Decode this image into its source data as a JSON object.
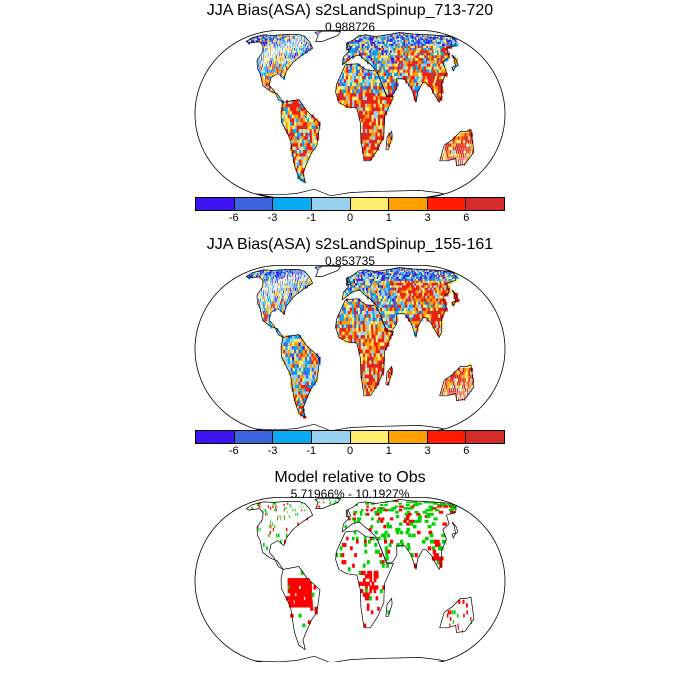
{
  "panels": [
    {
      "title": "JJA Bias(ASA) s2sLandSpinup_713-720",
      "subtitle": "0.988726"
    },
    {
      "title": "JJA Bias(ASA) s2sLandSpinup_155-161",
      "subtitle": "0.853735"
    },
    {
      "title": "Model relative to Obs",
      "subtitle": "5.71966% - 10.1927%"
    }
  ],
  "colorbar": {
    "colors": [
      "#3b14f0",
      "#3c64dc",
      "#0aaaf5",
      "#96d2f0",
      "#ffee6e",
      "#ffa000",
      "#ff1a00",
      "#d42a2a"
    ],
    "tick_labels": [
      "-6",
      "-3",
      "-1",
      "0",
      "1",
      "3",
      "6"
    ]
  },
  "difference_colors": {
    "better": "#00d200",
    "worse": "#ff0000"
  }
}
